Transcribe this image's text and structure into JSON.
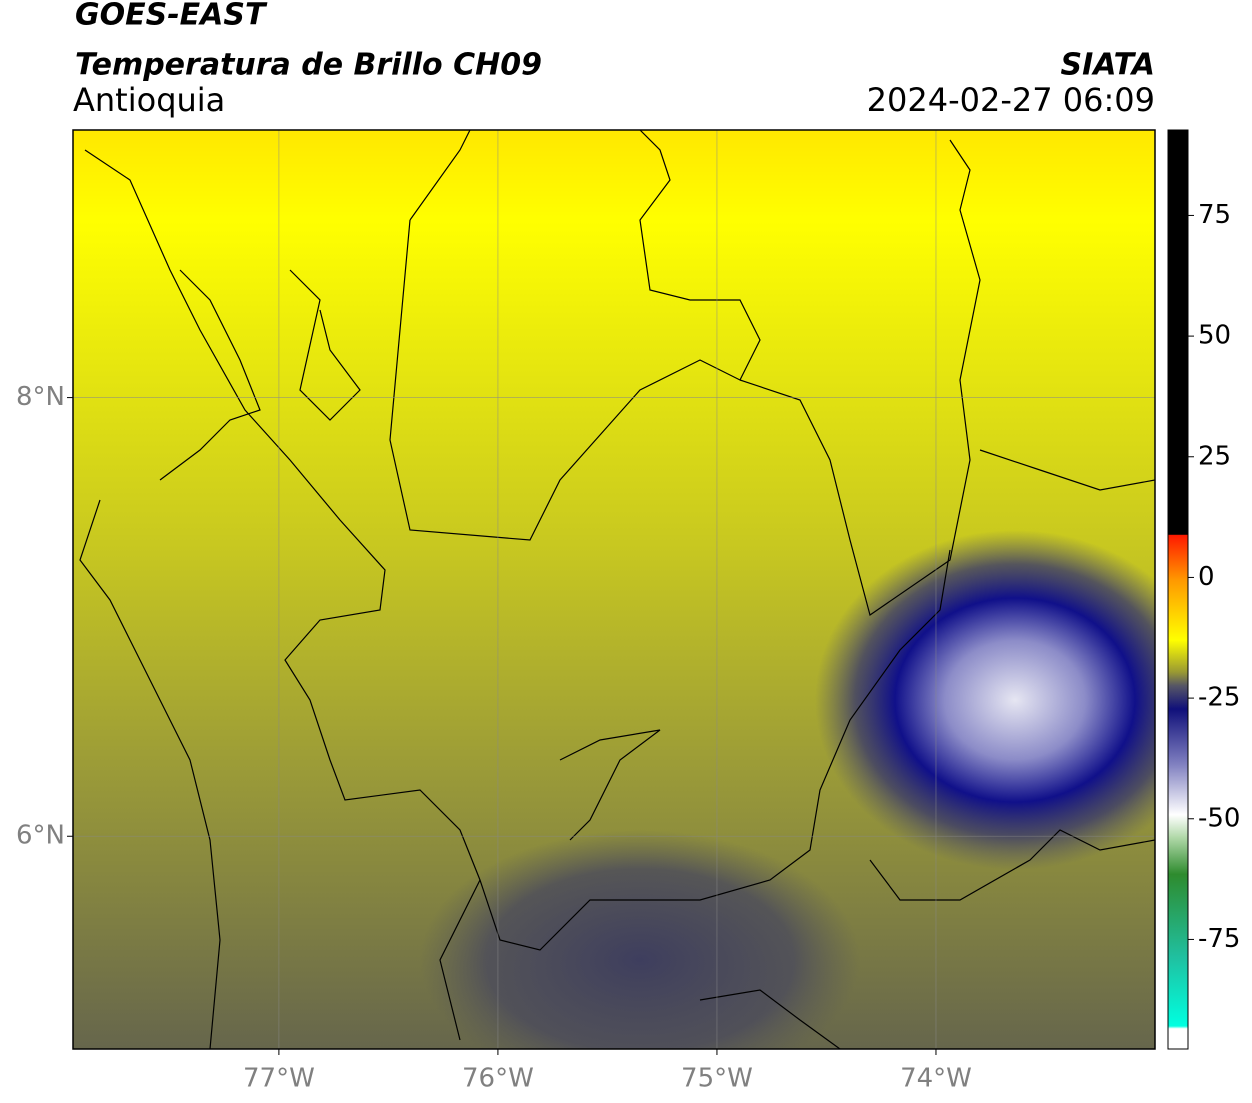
{
  "chart_data": {
    "type": "map",
    "title": "GOES-EAST",
    "subtitle": "Temperatura de Brillo CH09",
    "region": "Antioquia",
    "source": "SIATA",
    "timestamp": "2024-02-27 06:09",
    "xlim": [
      -77.94,
      -73.0
    ],
    "ylim": [
      5.03,
      9.22
    ],
    "xticks": [
      {
        "value": -77,
        "label": "77°W"
      },
      {
        "value": -76,
        "label": "76°W"
      },
      {
        "value": -75,
        "label": "75°W"
      },
      {
        "value": -74,
        "label": "74°W"
      }
    ],
    "yticks": [
      {
        "value": 8,
        "label": "8°N"
      },
      {
        "value": 6,
        "label": "6°N"
      }
    ],
    "grid": true,
    "colorbar": {
      "lim": [
        -97.7,
        92.7
      ],
      "ticks": [
        75,
        50,
        25,
        0,
        -25,
        -50,
        -75
      ]
    }
  }
}
